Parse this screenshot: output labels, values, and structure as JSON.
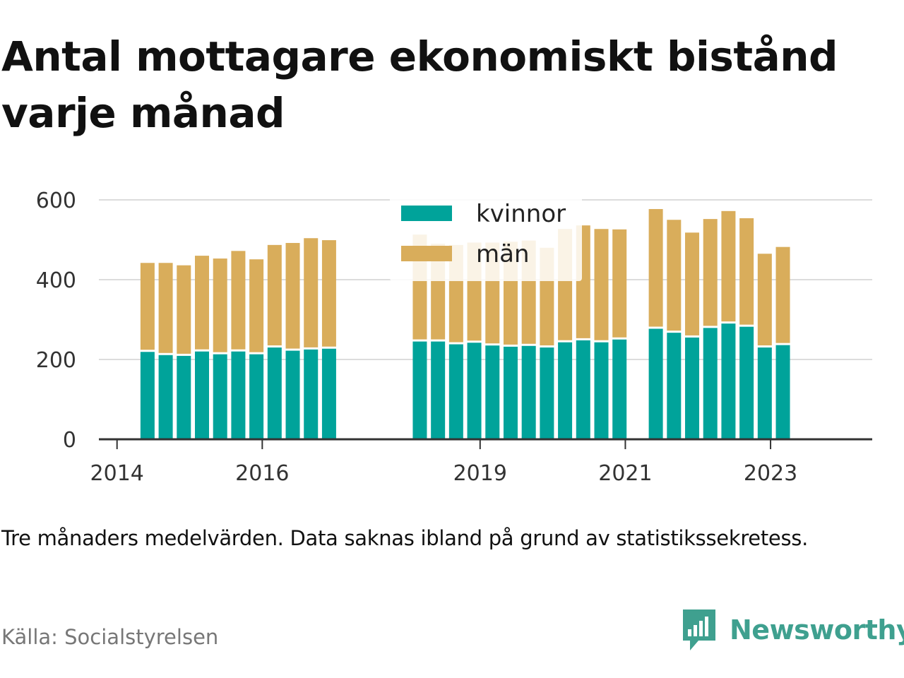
{
  "colors": {
    "kvinnor": "#00a39a",
    "man": "#d9ad5b",
    "grid": "#dcdcdc",
    "axis": "#333333",
    "brand": "#3fa08f"
  },
  "chart_data": {
    "type": "bar",
    "stacked": true,
    "title": "Antal mottagare ekonomiskt bistånd varje månad",
    "note": "Tre månaders medelvärden. Data saknas ibland på grund av statistikssekretess.",
    "source": "Källa: Socialstyrelsen",
    "ylim": [
      0,
      600
    ],
    "yticks": [
      0,
      200,
      400,
      600
    ],
    "xticks": [
      "2014",
      "2016",
      "2019",
      "2021",
      "2023"
    ],
    "xlim": [
      2013.75,
      2024.4
    ],
    "grid": true,
    "legend_placement": "top-center",
    "x": [
      2014.42,
      2014.67,
      2014.92,
      2015.17,
      2015.42,
      2015.67,
      2015.92,
      2016.17,
      2016.42,
      2016.67,
      2016.92,
      2018.17,
      2018.42,
      2018.67,
      2018.92,
      2019.17,
      2019.42,
      2019.67,
      2019.92,
      2020.17,
      2020.42,
      2020.67,
      2020.92,
      2021.42,
      2021.67,
      2021.92,
      2022.17,
      2022.42,
      2022.67,
      2022.92,
      2023.17
    ],
    "series": [
      {
        "name": "kvinnor",
        "values": [
          219,
          211,
          209,
          220,
          213,
          220,
          213,
          230,
          222,
          225,
          227,
          245,
          245,
          238,
          242,
          235,
          232,
          234,
          230,
          243,
          248,
          243,
          250,
          277,
          267,
          255,
          279,
          290,
          282,
          230,
          236
        ]
      },
      {
        "name": "män",
        "values": [
          223,
          231,
          227,
          240,
          240,
          252,
          238,
          257,
          270,
          279,
          272,
          268,
          245,
          249,
          251,
          258,
          263,
          264,
          250,
          284,
          288,
          284,
          276,
          300,
          283,
          263,
          273,
          282,
          272,
          235,
          246
        ]
      }
    ]
  },
  "legend": {
    "kvinnor": "kvinnor",
    "man": "män"
  },
  "brand": {
    "name": "Newsworthy",
    "logo_icon": "newsworthy-bar-chart-icon"
  }
}
